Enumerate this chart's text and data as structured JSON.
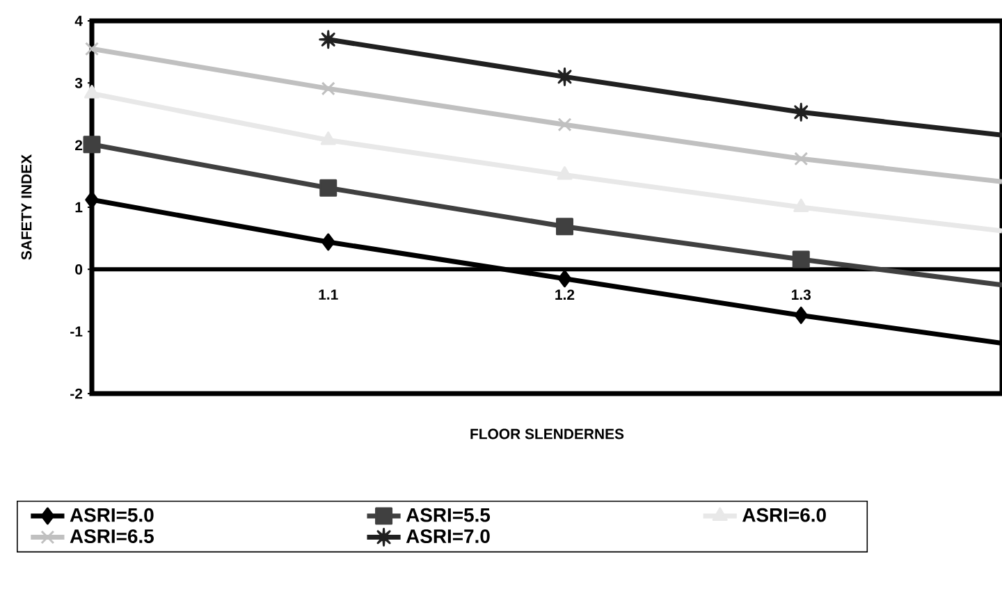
{
  "chart_data": {
    "type": "line",
    "xlabel": "FLOOR SLENDERNES",
    "ylabel": "SAFETY INDEX",
    "xlim": [
      1.0,
      1.385
    ],
    "ylim": [
      -2,
      4
    ],
    "xticks": [
      1.1,
      1.2,
      1.3
    ],
    "yticks": [
      -2,
      -1,
      0,
      1,
      2,
      3,
      4
    ],
    "legend": "bottom",
    "grid": false,
    "series": [
      {
        "name": "ASRI=5.0",
        "color": "#000000",
        "marker": "diamond",
        "x": [
          1.0,
          1.1,
          1.2,
          1.3,
          1.385
        ],
        "values": [
          1.12,
          0.44,
          -0.15,
          -0.74,
          -1.19
        ]
      },
      {
        "name": "ASRI=5.5",
        "color": "#404040",
        "marker": "square",
        "x": [
          1.0,
          1.1,
          1.2,
          1.3,
          1.385
        ],
        "values": [
          2.01,
          1.31,
          0.69,
          0.16,
          -0.25
        ]
      },
      {
        "name": "ASRI=6.0",
        "color": "#e8e8e8",
        "marker": "triangle",
        "x": [
          1.0,
          1.1,
          1.2,
          1.3,
          1.385
        ],
        "values": [
          2.83,
          2.08,
          1.52,
          1.0,
          0.62
        ]
      },
      {
        "name": "ASRI=6.5",
        "color": "#c0c0c0",
        "marker": "cross",
        "x": [
          1.0,
          1.1,
          1.2,
          1.3,
          1.385
        ],
        "values": [
          3.55,
          2.91,
          2.33,
          1.78,
          1.41
        ]
      },
      {
        "name": "ASRI=7.0",
        "color": "#202020",
        "marker": "star",
        "x": [
          1.1,
          1.2,
          1.3,
          1.385
        ],
        "values": [
          3.7,
          3.1,
          2.53,
          2.16
        ]
      }
    ]
  }
}
